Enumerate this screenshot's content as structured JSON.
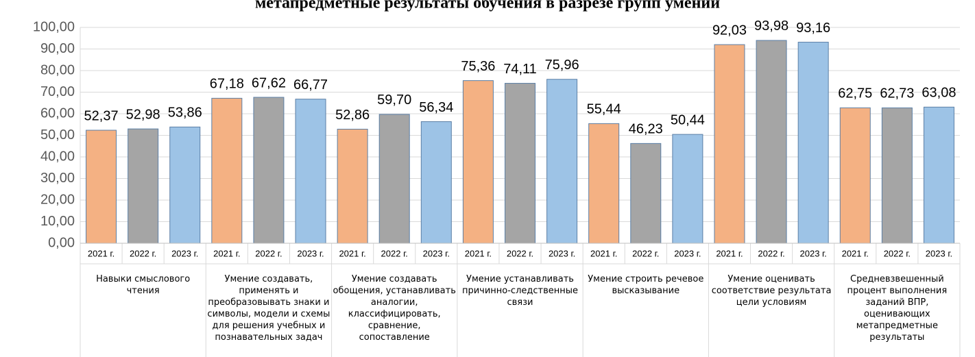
{
  "chart_data": {
    "type": "bar",
    "title": "метапредметные результаты обучения в разрезе групп умений",
    "categories": [
      "Навыки смыслового чтения",
      "Умение создавать, применять и преобразовывать знаки и символы, модели и схемы для решения учебных и познавательных задач",
      "Умение создавать обощения, устанавливать аналогии, классифицировать, сравнение, сопоставление",
      "Умение устанавливать причинно-следственные связи",
      "Умение строить речевое высказывание",
      "Умение оценивать соответствие результата цели условиям",
      "Средневзвешенный процент выполнения заданий ВПР, оценивающих метапредметные результаты"
    ],
    "series": [
      {
        "name": "2021 г.",
        "color": "#f4b183",
        "values": [
          52.37,
          67.18,
          52.86,
          75.36,
          55.44,
          92.03,
          62.75
        ],
        "value_labels": [
          "52,37",
          "67,18",
          "52,86",
          "75,36",
          "55,44",
          "92,03",
          "62,75"
        ]
      },
      {
        "name": "2022 г.",
        "color": "#a5a5a5",
        "values": [
          52.98,
          67.62,
          59.7,
          74.11,
          46.23,
          93.98,
          62.73
        ],
        "value_labels": [
          "52,98",
          "67,62",
          "59,70",
          "74,11",
          "46,23",
          "93,98",
          "62,73"
        ]
      },
      {
        "name": "2023 г.",
        "color": "#9dc3e6",
        "values": [
          53.86,
          66.77,
          56.34,
          75.96,
          50.44,
          93.16,
          63.08
        ],
        "value_labels": [
          "53,86",
          "66,77",
          "56,34",
          "75,96",
          "50,44",
          "93,16",
          "63,08"
        ]
      }
    ],
    "ylim": [
      0,
      100
    ],
    "yticks": [
      {
        "value": 0,
        "label": "0,00"
      },
      {
        "value": 10,
        "label": "10,00"
      },
      {
        "value": 20,
        "label": "20,00"
      },
      {
        "value": 30,
        "label": "30,00"
      },
      {
        "value": 40,
        "label": "40,00"
      },
      {
        "value": 50,
        "label": "50,00"
      },
      {
        "value": 60,
        "label": "60,00"
      },
      {
        "value": 70,
        "label": "70,00"
      },
      {
        "value": 80,
        "label": "80,00"
      },
      {
        "value": 90,
        "label": "90,00"
      },
      {
        "value": 100,
        "label": "100,00"
      }
    ],
    "grid": true
  }
}
